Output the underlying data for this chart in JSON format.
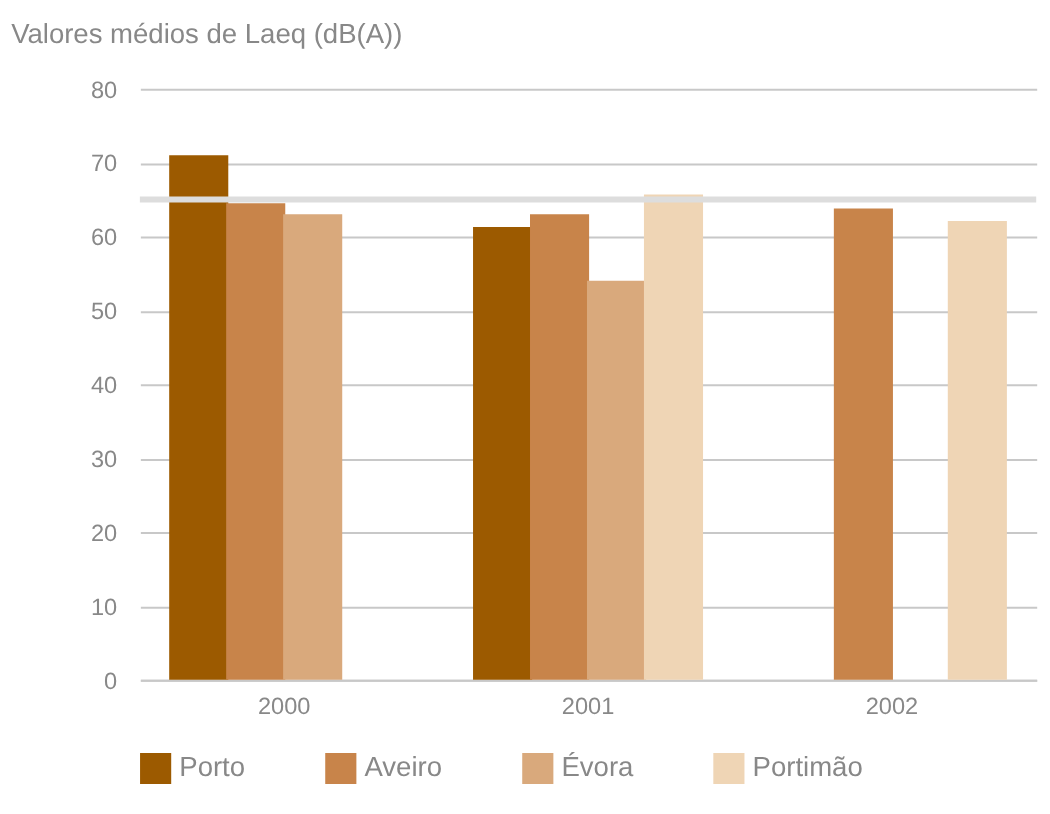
{
  "chart_data": {
    "type": "bar",
    "title": "Valores médios de Laeq (dB(A))",
    "categories": [
      "2000",
      "2001",
      "2002"
    ],
    "series": [
      {
        "name": "Porto",
        "color": "#9c5a00",
        "values": [
          71,
          61.3,
          null
        ]
      },
      {
        "name": "Aveiro",
        "color": "#c8844a",
        "values": [
          64.5,
          63,
          63.8
        ]
      },
      {
        "name": "Évora",
        "color": "#d9a97c",
        "values": [
          63,
          54,
          null
        ]
      },
      {
        "name": "Portimão",
        "color": "#efd5b5",
        "values": [
          null,
          65.7,
          62.1
        ]
      }
    ],
    "ylim": [
      0,
      80
    ],
    "yticks": [
      0,
      10,
      20,
      30,
      40,
      50,
      60,
      70,
      80
    ],
    "grid": "y",
    "legend": "bottom",
    "ref_lines": [
      {
        "axis": "y",
        "value": 65,
        "color": "#dddddd"
      }
    ]
  }
}
